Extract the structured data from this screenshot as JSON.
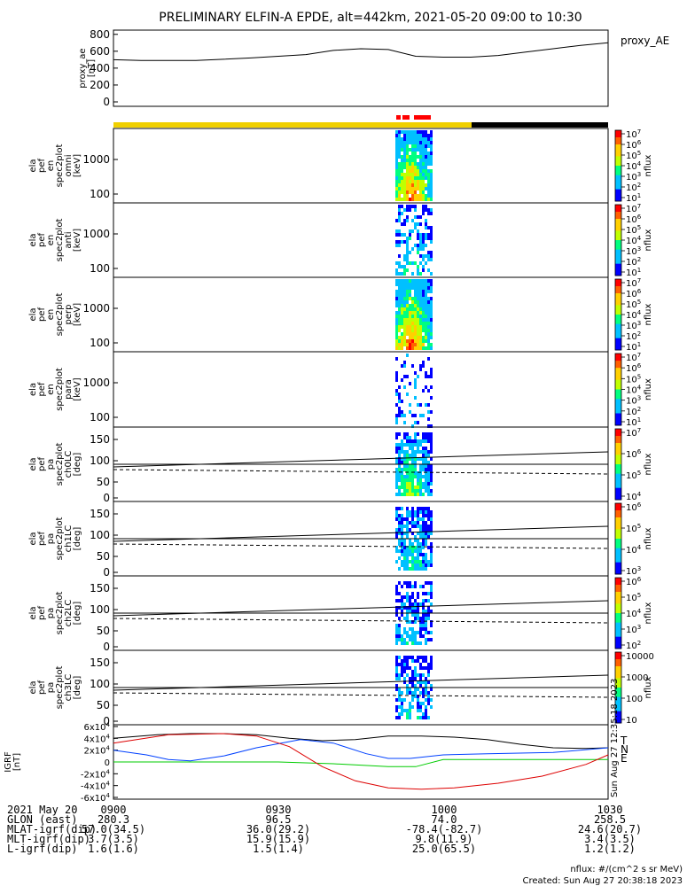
{
  "title": "PRELIMINARY ELFIN-A EPDE, alt=442km, 2021-05-20 09:00 to 10:30",
  "chart_data": {
    "type": "line",
    "x_time": [
      "0900",
      "0930",
      "1000",
      "1030"
    ],
    "panels": [
      {
        "id": "proxy_ae",
        "ylabel": [
          "proxy_ae",
          "[nT]"
        ],
        "legend": "proxy_AE",
        "yticks": [
          "800",
          "600",
          "400",
          "200",
          "0"
        ],
        "ylim": [
          0,
          850
        ],
        "series": [
          {
            "name": "proxy_AE",
            "x_minutes": [
              0,
              5,
              15,
              25,
              35,
              40,
              45,
              50,
              55,
              60,
              65,
              70,
              75,
              80,
              85,
              90
            ],
            "values": [
              500,
              490,
              490,
              520,
              560,
              610,
              630,
              620,
              540,
              530,
              530,
              550,
              590,
              630,
              670,
              700
            ]
          }
        ]
      },
      {
        "id": "omni",
        "ylabel": [
          "ela",
          "pef",
          "en",
          "spec2plot",
          "omni",
          "[keV]"
        ],
        "yticks": [
          "1000",
          "100"
        ],
        "colorbar_ticks": [
          "10^7",
          "10^6",
          "10^5",
          "10^4",
          "10^3",
          "10^2",
          "10^1"
        ],
        "colorbar_label": "nflux"
      },
      {
        "id": "anti",
        "ylabel": [
          "ela",
          "pef",
          "en",
          "spec2plot",
          "anti",
          "[keV]"
        ],
        "yticks": [
          "1000",
          "100"
        ],
        "colorbar_ticks": [
          "10^7",
          "10^6",
          "10^5",
          "10^4",
          "10^3",
          "10^2",
          "10^1"
        ],
        "colorbar_label": "nflux"
      },
      {
        "id": "perp",
        "ylabel": [
          "ela",
          "pef",
          "en",
          "spec2plot",
          "perp",
          "[keV]"
        ],
        "yticks": [
          "1000",
          "100"
        ],
        "colorbar_ticks": [
          "10^7",
          "10^6",
          "10^5",
          "10^4",
          "10^3",
          "10^2",
          "10^1"
        ],
        "colorbar_label": "nflux"
      },
      {
        "id": "para",
        "ylabel": [
          "ela",
          "pef",
          "en",
          "spec2plot",
          "para",
          "[keV]"
        ],
        "yticks": [
          "1000",
          "100"
        ],
        "colorbar_ticks": [
          "10^7",
          "10^6",
          "10^5",
          "10^4",
          "10^3",
          "10^2",
          "10^1"
        ],
        "colorbar_label": "nflux"
      },
      {
        "id": "ch0LC",
        "ylabel": [
          "ela",
          "pef",
          "pa",
          "spec2plot",
          "ch0LC",
          "[deg]"
        ],
        "yticks": [
          "150",
          "100",
          "50",
          "0"
        ],
        "colorbar_ticks": [
          "10^7",
          "10^6",
          "10^5",
          "10^4"
        ],
        "colorbar_label": "nflux"
      },
      {
        "id": "ch1LC",
        "ylabel": [
          "ela",
          "pef",
          "pa",
          "spec2plot",
          "ch1LC",
          "[deg]"
        ],
        "yticks": [
          "150",
          "100",
          "50",
          "0"
        ],
        "colorbar_ticks": [
          "10^6",
          "10^5",
          "10^4",
          "10^3"
        ],
        "colorbar_label": "nflux"
      },
      {
        "id": "ch2LC",
        "ylabel": [
          "ela",
          "pef",
          "pa",
          "spec2plot",
          "ch2LC",
          "[deg]"
        ],
        "yticks": [
          "150",
          "100",
          "50",
          "0"
        ],
        "colorbar_ticks": [
          "10^6",
          "10^5",
          "10^4",
          "10^3",
          "10^2"
        ],
        "colorbar_label": "nflux"
      },
      {
        "id": "ch3LC",
        "ylabel": [
          "ela",
          "pef",
          "pa",
          "spec2plot",
          "ch3LC",
          "[deg]"
        ],
        "yticks": [
          "150",
          "100",
          "50",
          "0"
        ],
        "colorbar_ticks": [
          "10000",
          "1000",
          "100",
          "10"
        ],
        "colorbar_label": "nflux"
      },
      {
        "id": "igrf",
        "ylabel": [
          "IGRF",
          "[nT]"
        ],
        "yticks": [
          "6x10^4",
          "4x10^4",
          "2x10^4",
          "0",
          "-2x10^4",
          "-4x10^4",
          "-6x10^4"
        ],
        "legend": [
          "T",
          "N",
          "E"
        ],
        "series": [
          {
            "name": "T",
            "x_minutes": [
              0,
              8,
              14,
              20,
              26,
              32,
              38,
              44,
              50,
              56,
              62,
              68,
              74,
              80,
              86,
              90
            ],
            "values": [
              40000,
              46000,
              48000,
              48000,
              46000,
              40000,
              36000,
              38000,
              44000,
              44000,
              42000,
              38000,
              30000,
              24000,
              23000,
              24000
            ]
          },
          {
            "name": "N",
            "x_minutes": [
              0,
              6,
              10,
              14,
              20,
              26,
              34,
              40,
              46,
              50,
              54,
              60,
              68,
              80,
              90
            ],
            "values": [
              20000,
              12000,
              4000,
              2000,
              10000,
              24000,
              38000,
              32000,
              14000,
              6000,
              6000,
              12000,
              14000,
              16000,
              24000
            ]
          },
          {
            "name": "E",
            "x_minutes": [
              0,
              30,
              40,
              50,
              55,
              60,
              70,
              80,
              90
            ],
            "values": [
              0,
              0,
              -3000,
              -8000,
              -8000,
              4000,
              4000,
              4000,
              4000
            ]
          },
          {
            "name": "T-red",
            "x_minutes": [
              0,
              10,
              20,
              26,
              32,
              38,
              44,
              50,
              56,
              62,
              70,
              78,
              86,
              90
            ],
            "values": [
              32000,
              46000,
              48000,
              44000,
              26000,
              -8000,
              -32000,
              -44000,
              -46000,
              -44000,
              -36000,
              -24000,
              -4000,
              12000
            ]
          }
        ]
      }
    ]
  },
  "colors": {
    "axis": "#000000",
    "orbit_bar_yellow": "#f0d000",
    "orbit_bar_black": "#000000",
    "orbit_bar_red": "#ff0000",
    "igrf_T": "#000000",
    "igrf_N": "#0040ff",
    "igrf_E": "#00cc00",
    "igrf_red": "#dd0000",
    "legend_T": "#000080",
    "legend_N": "#cc0000",
    "legend_E": "#00cc00"
  },
  "footer": {
    "rows": [
      {
        "label": "2021 May 20",
        "values": [
          "0900",
          "0930",
          "1000",
          "1030"
        ]
      },
      {
        "label": "GLON (east)",
        "values": [
          "280.3",
          "96.5",
          "74.0",
          "258.5"
        ]
      },
      {
        "label": "MLAT-igrf(dip)",
        "values": [
          "57.0(34.5)",
          "36.0(29.2)",
          "-78.4(-82.7)",
          "24.6(20.7)"
        ]
      },
      {
        "label": "MLT-igrf(dip)",
        "values": [
          "3.7(3.5)",
          "15.9(15.9)",
          "9.8(11.9)",
          "3.4(3.5)"
        ]
      },
      {
        "label": "L-igrf(dip)",
        "values": [
          "1.6(1.6)",
          "1.5(1.4)",
          "25.0(65.5)",
          "1.2(1.2)"
        ]
      }
    ],
    "units_note": "nflux: #/(cm^2 s sr MeV)",
    "created": "Created: Sun Aug 27 20:38:18 2023",
    "side_stamp": "Sun Aug 27 12:35:18 2023"
  }
}
